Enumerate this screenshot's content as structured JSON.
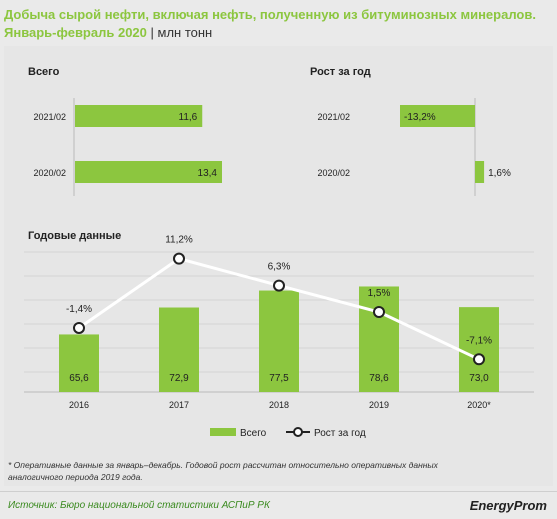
{
  "title_line1": "Добыча сырой нефти, включая нефть, полученную из битуминозных минералов.",
  "title_line2": "Январь-февраль 2020",
  "unit": "| млн тонн",
  "top_left_title": "Всего",
  "top_right_title": "Рост за год",
  "bottom_title": "Годовые данные",
  "colors": {
    "green": "#8cc63f",
    "title_green": "#8cc63f",
    "line": "#ffffff",
    "text": "#222222"
  },
  "chart_data": [
    {
      "type": "bar",
      "orientation": "horizontal",
      "title": "Всего",
      "categories": [
        "2021/02",
        "2020/02"
      ],
      "values": [
        11.6,
        13.4
      ],
      "labels": [
        "11,6",
        "13,4"
      ]
    },
    {
      "type": "bar",
      "orientation": "horizontal",
      "title": "Рост за год",
      "categories": [
        "2021/02",
        "2020/02"
      ],
      "values": [
        -13.2,
        1.6
      ],
      "labels": [
        "-13,2%",
        "1,6%"
      ]
    },
    {
      "type": "bar",
      "title": "Годовые данные",
      "categories": [
        "2016",
        "2017",
        "2018",
        "2019",
        "2020*"
      ],
      "series": [
        {
          "name": "Всего",
          "values": [
            65.6,
            72.9,
            77.5,
            78.6,
            73.0
          ],
          "labels": [
            "65,6",
            "72,9",
            "77,5",
            "78,6",
            "73,0"
          ]
        },
        {
          "name": "Рост за год",
          "type": "line",
          "values": [
            -1.4,
            11.2,
            6.3,
            1.5,
            -7.1
          ],
          "labels": [
            "-1,4%",
            "11,2%",
            "6,3%",
            "1,5%",
            "-7,1%"
          ]
        }
      ],
      "legend": [
        "Всего",
        "Рост за год"
      ],
      "legend_position": "bottom"
    }
  ],
  "note_line1": "* Оперативные данные за январь–декабрь. Годовой рост рассчитан относительно оперативных данных",
  "note_line2": "аналогичного периода 2019 года.",
  "source": "Источник: Бюро национальной статистики АСПиР РК",
  "logo": "EnergyProm"
}
